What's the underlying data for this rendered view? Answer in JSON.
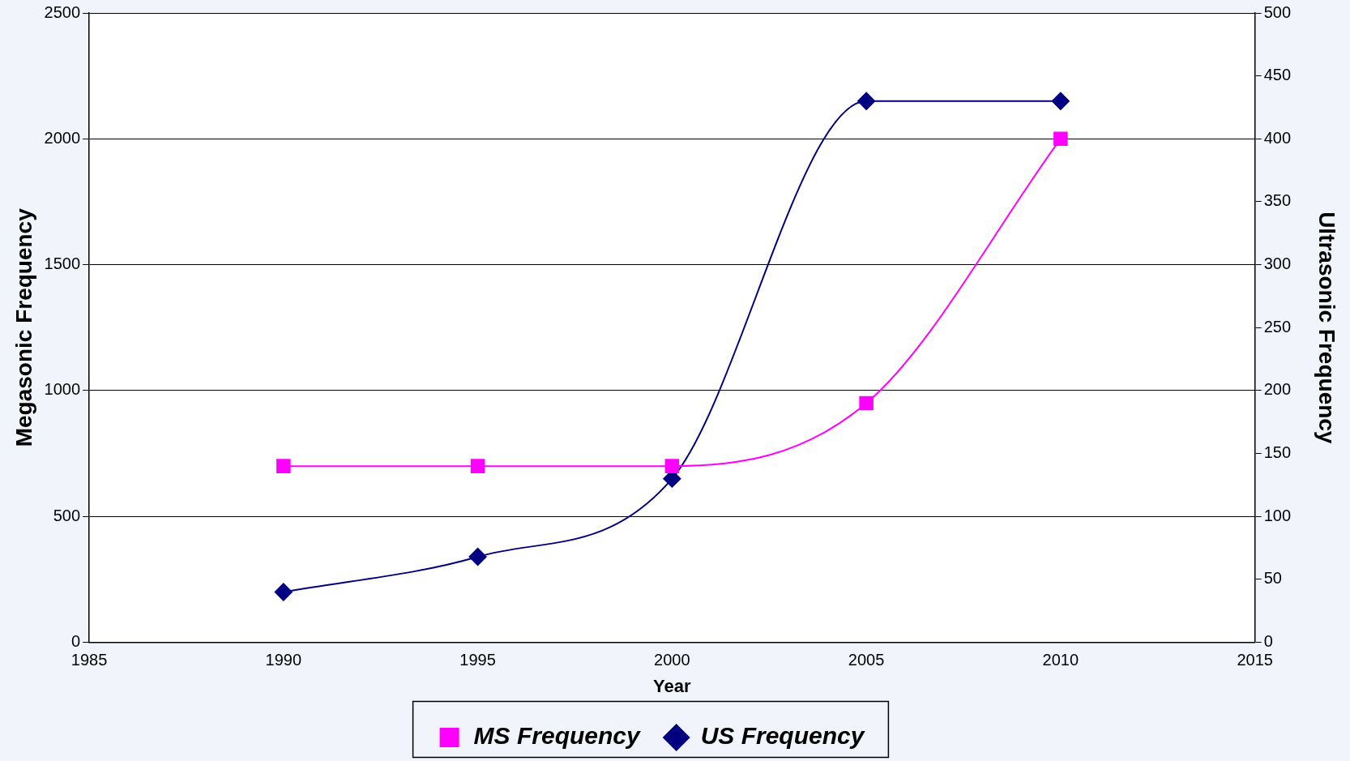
{
  "chart_data": {
    "type": "line",
    "xlabel": "Year",
    "ylabel": "Megasonic Frequency",
    "y2label": "Ultrasonic Frequency",
    "x": [
      1990,
      1995,
      2000,
      2005,
      2010
    ],
    "series": [
      {
        "name": "MS Frequency",
        "color": "#ff00ff",
        "values": [
          700,
          700,
          700,
          950,
          2000
        ],
        "marker": "square"
      },
      {
        "name": "US Frequency",
        "color": "#000080",
        "values": [
          40,
          68,
          130,
          430,
          430
        ],
        "marker": "diamond",
        "axis": "y2"
      }
    ],
    "xlim": [
      1985,
      2015
    ],
    "xticks": [
      1985,
      1990,
      1995,
      2000,
      2005,
      2010,
      2015
    ],
    "ylim": [
      0,
      2500
    ],
    "yticks": [
      0,
      500,
      1000,
      1500,
      2000,
      2500
    ],
    "y2lim": [
      0,
      500
    ],
    "y2ticks": [
      0,
      50,
      100,
      150,
      200,
      250,
      300,
      350,
      400,
      450,
      500
    ],
    "grid": "y",
    "legend": "bottom"
  }
}
